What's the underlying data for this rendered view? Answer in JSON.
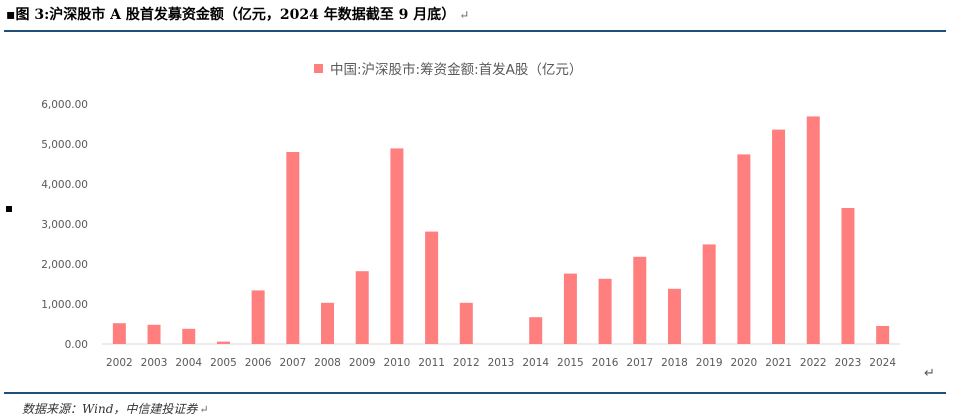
{
  "header": {
    "title": "▪图 3:沪深股市 A 股首发募资金额（亿元，2024 年数据截至 9 月底）",
    "return_mark": "↵"
  },
  "footer": {
    "source": "数据来源：Wind，中信建投证券",
    "source_mark": "↵",
    "right_mark": "↵"
  },
  "chart_data": {
    "type": "bar",
    "title": "",
    "xlabel": "",
    "ylabel": "",
    "legend_position": "top-center",
    "grid": false,
    "ylim": [
      0,
      6000
    ],
    "yticks": [
      "0.00",
      "1,000.00",
      "2,000.00",
      "3,000.00",
      "4,000.00",
      "5,000.00",
      "6,000.00"
    ],
    "categories": [
      "2002",
      "2003",
      "2004",
      "2005",
      "2006",
      "2007",
      "2008",
      "2009",
      "2010",
      "2011",
      "2012",
      "2013",
      "2014",
      "2015",
      "2016",
      "2017",
      "2018",
      "2019",
      "2020",
      "2021",
      "2022",
      "2023",
      "2024"
    ],
    "series": [
      {
        "name": "中国:沪深股市:筹资金额:首发A股（亿元）",
        "color": "#ff7f7f",
        "values": [
          520,
          480,
          380,
          60,
          1340,
          4800,
          1030,
          1820,
          4890,
          2810,
          1030,
          0,
          670,
          1760,
          1630,
          2180,
          1380,
          2490,
          4740,
          5360,
          5690,
          3400,
          450
        ]
      }
    ]
  }
}
